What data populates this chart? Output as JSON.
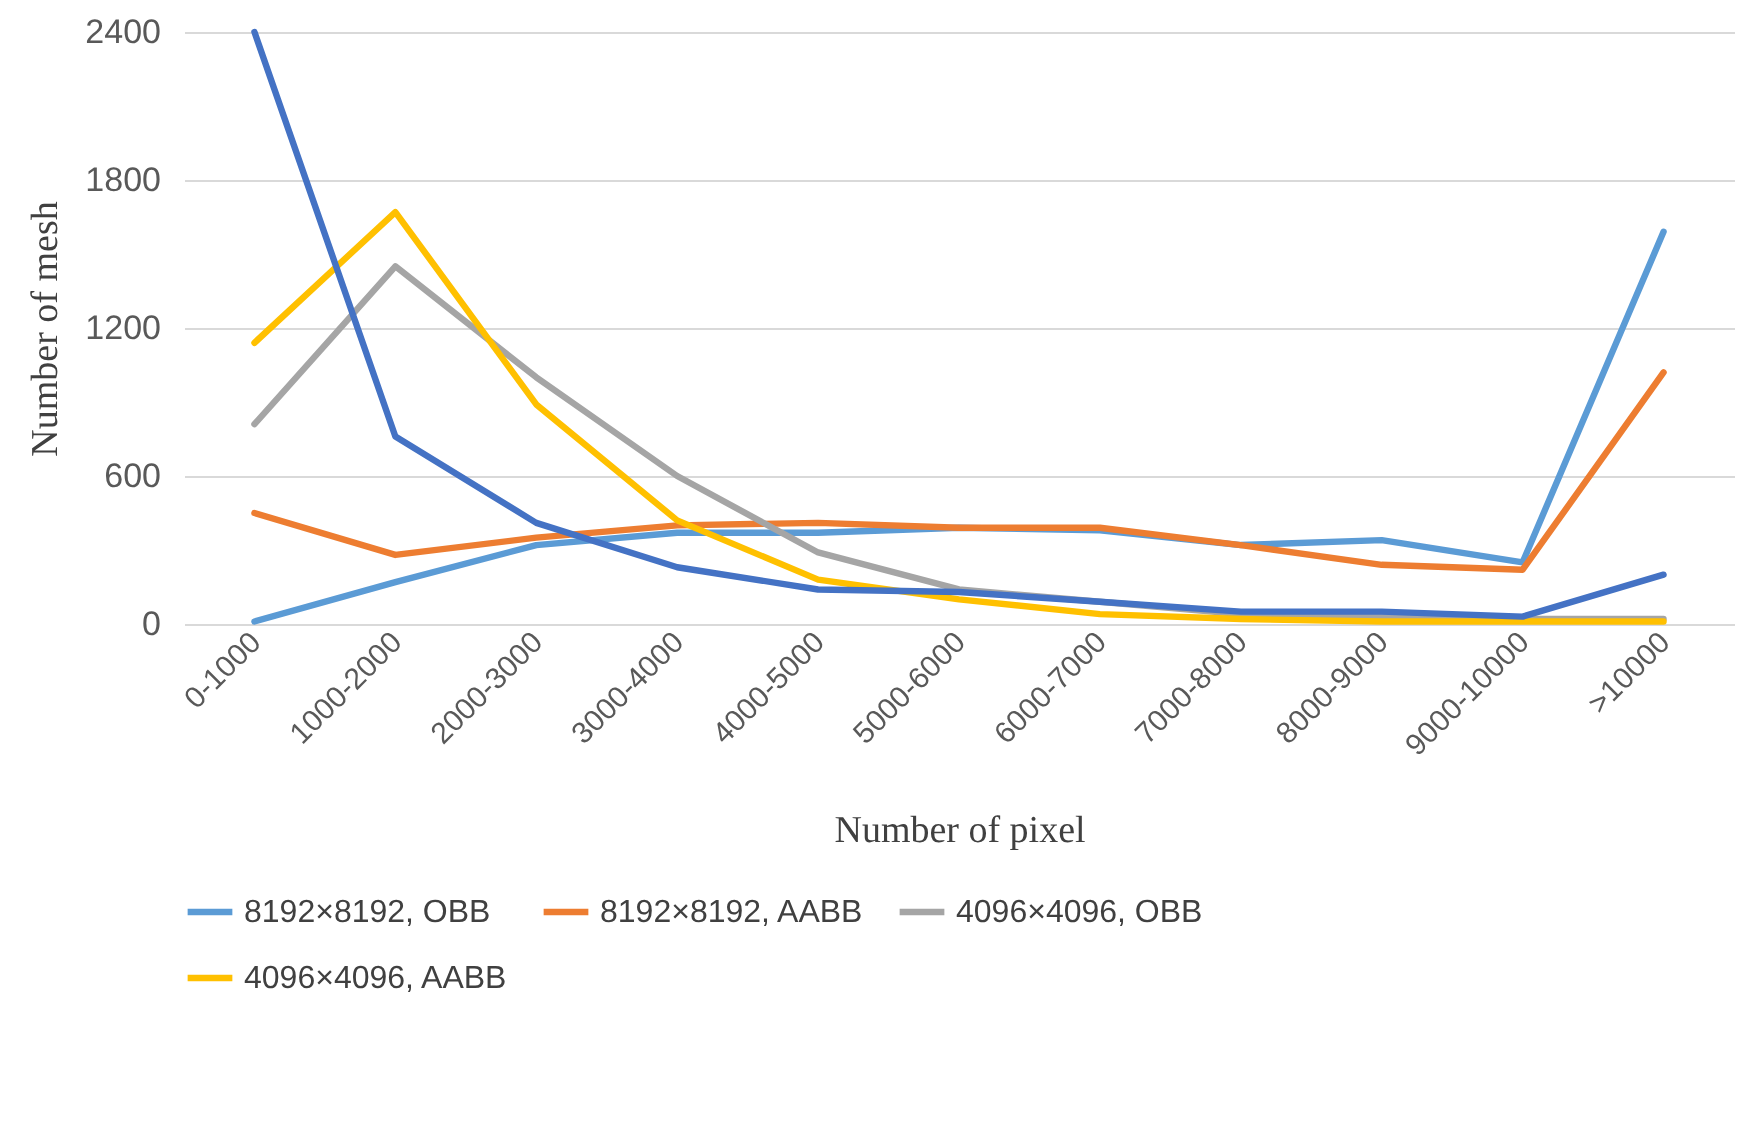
{
  "chart_data": {
    "type": "line",
    "xlabel": "Number of pixel",
    "ylabel": "Number of mesh",
    "categories": [
      "0-1000",
      "1000-2000",
      "2000-3000",
      "3000-4000",
      "4000-5000",
      "5000-6000",
      "6000-7000",
      "7000-8000",
      "8000-9000",
      "9000-10000",
      ">10000"
    ],
    "series": [
      {
        "name": "8192×8192, OBB",
        "color": "#5b9bd5",
        "values": [
          10,
          170,
          320,
          370,
          370,
          390,
          380,
          320,
          340,
          250,
          1590
        ]
      },
      {
        "name": "8192×8192, AABB",
        "color": "#ed7d31",
        "values": [
          450,
          280,
          350,
          400,
          410,
          390,
          390,
          320,
          240,
          220,
          1020
        ]
      },
      {
        "name": "4096×4096, OBB",
        "color": "#a5a5a5",
        "values": [
          810,
          1450,
          1000,
          600,
          290,
          140,
          90,
          40,
          30,
          20,
          20
        ]
      },
      {
        "name": "4096×4096, AABB",
        "color": "#ffc000",
        "values": [
          1140,
          1670,
          890,
          420,
          180,
          100,
          40,
          20,
          10,
          10,
          10
        ]
      },
      {
        "color": "#4472c4",
        "values": [
          2400,
          760,
          410,
          230,
          140,
          130,
          90,
          50,
          50,
          30,
          200
        ]
      }
    ],
    "ylim": [
      0,
      2400
    ],
    "yticks": [
      0,
      600,
      1200,
      1800,
      2400
    ],
    "grid": "y",
    "legend": "bottom",
    "marker": "none",
    "line_style": "solid"
  }
}
